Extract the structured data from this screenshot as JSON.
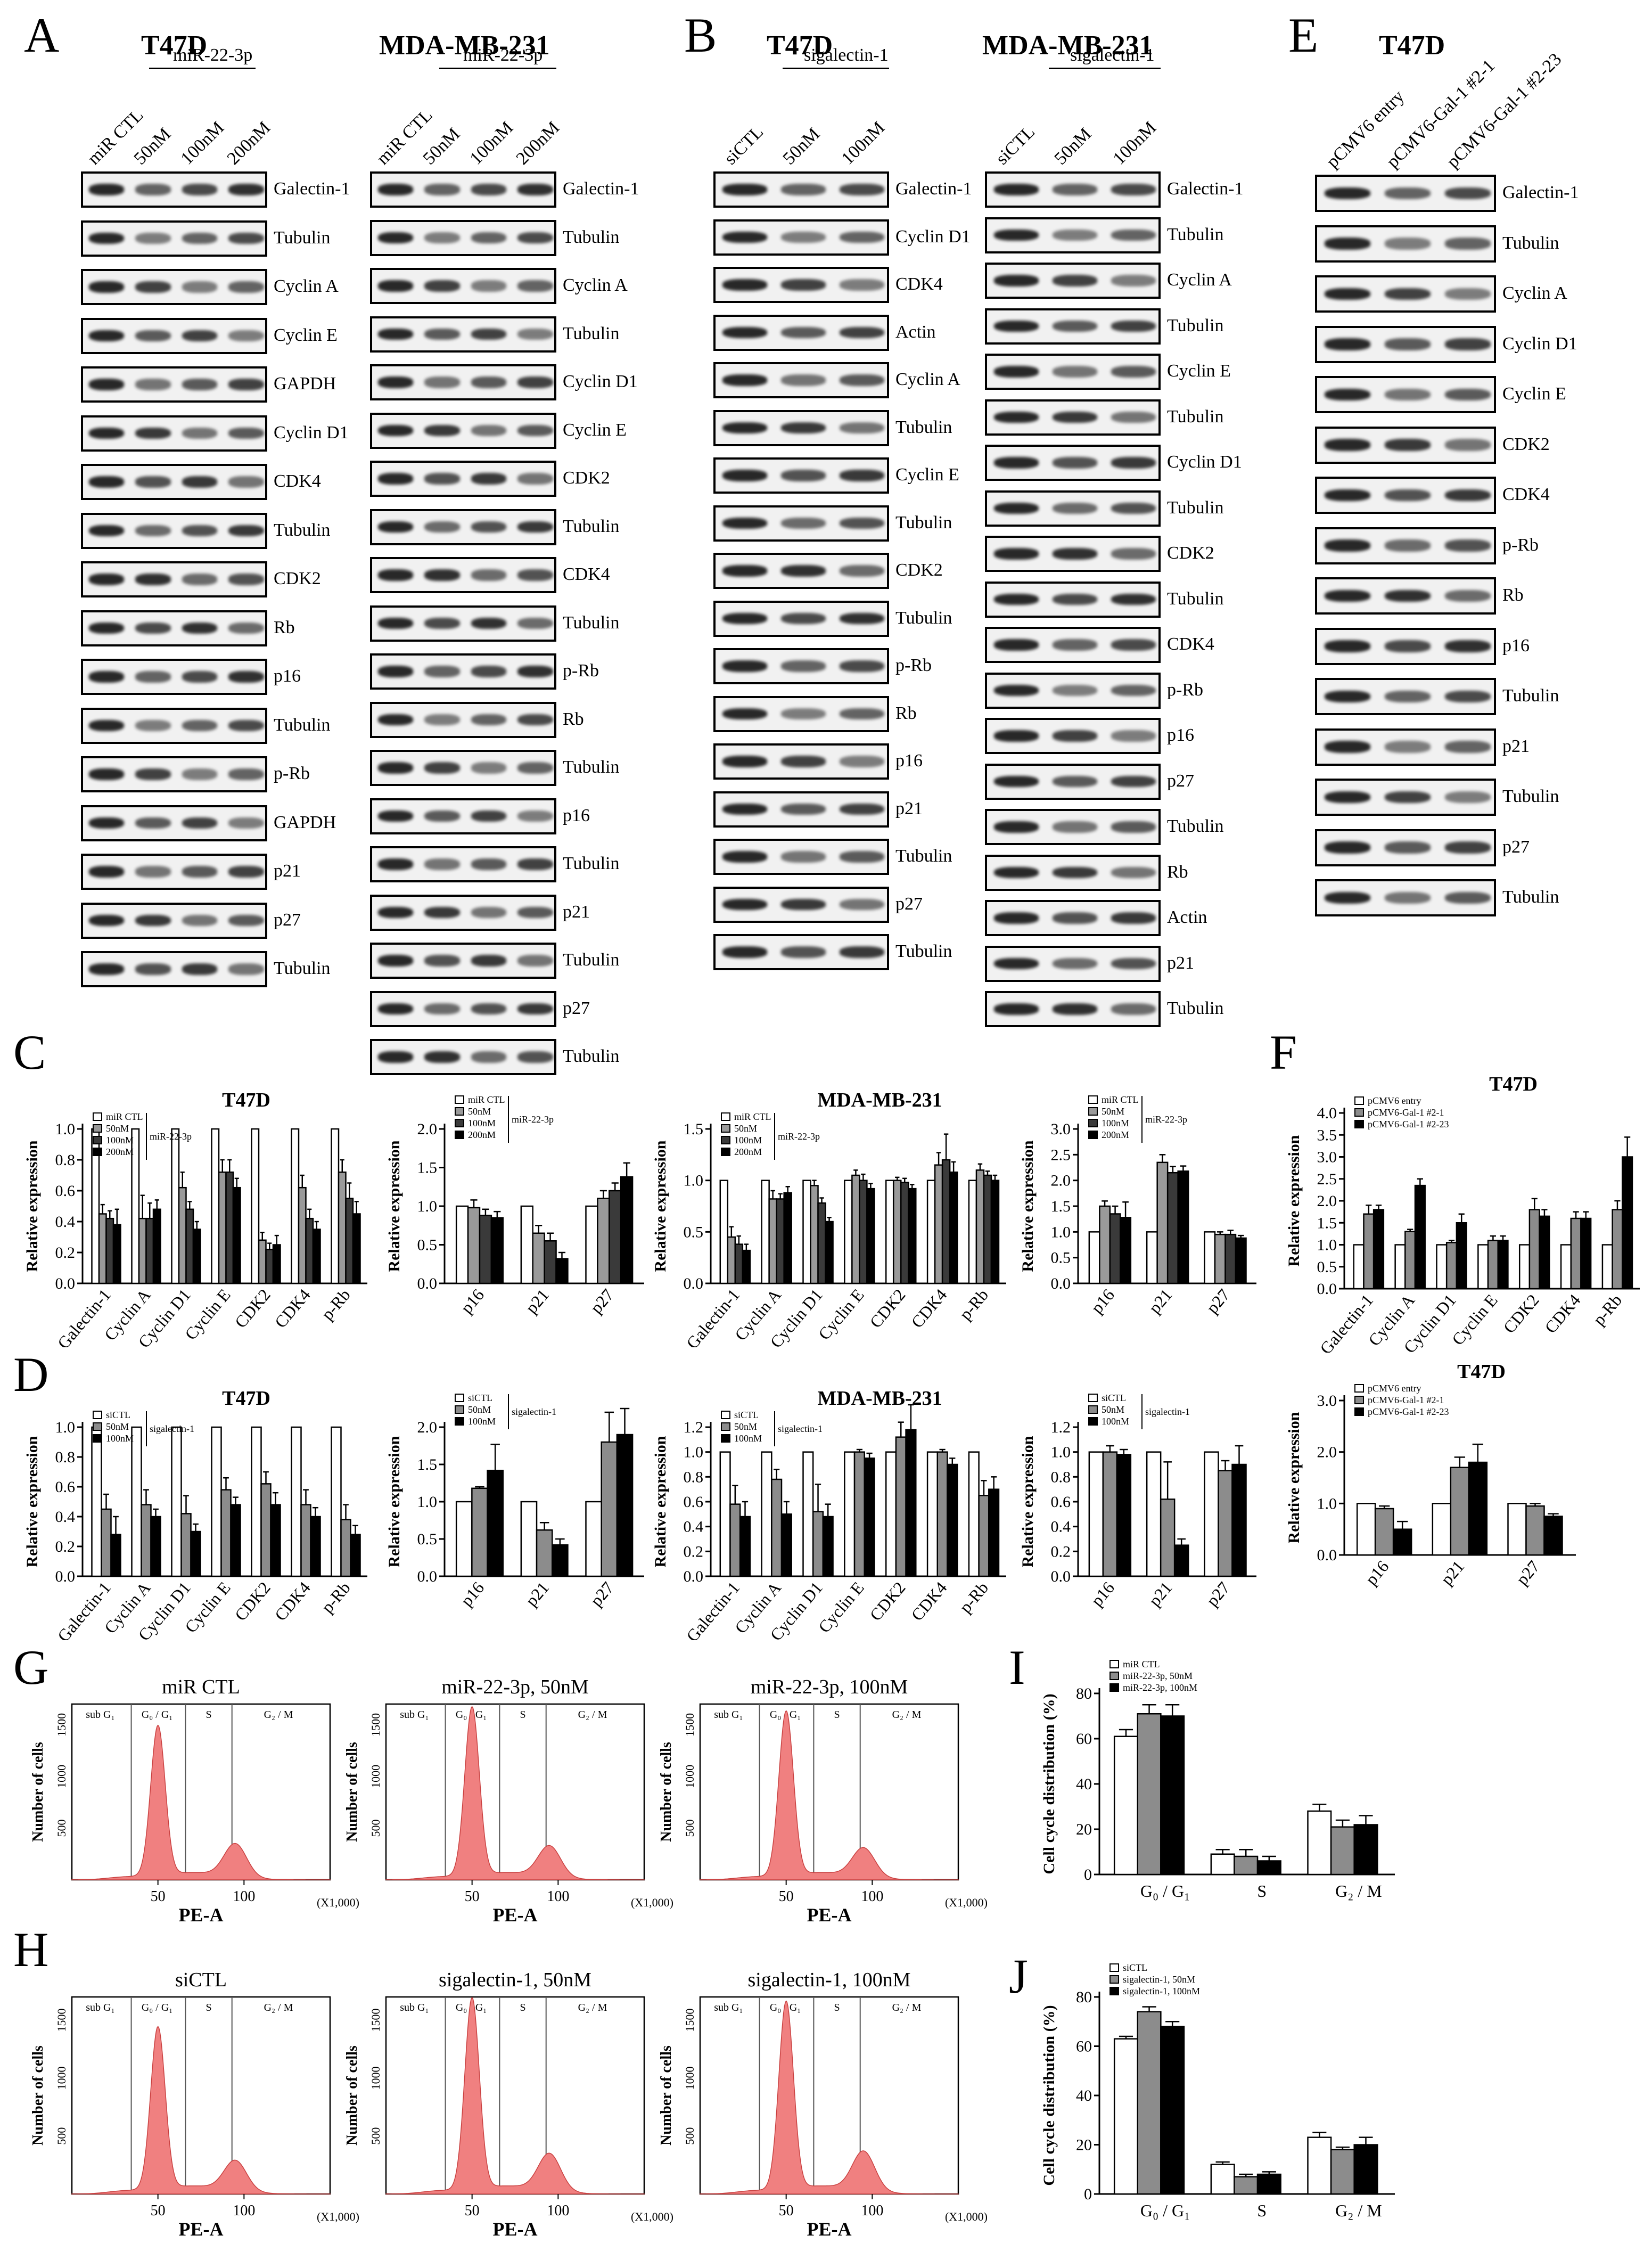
{
  "panel_letters": {
    "A": "A",
    "B": "B",
    "C": "C",
    "D": "D",
    "E": "E",
    "F": "F",
    "G": "G",
    "H": "H",
    "I": "I",
    "J": "J"
  },
  "panelA": {
    "t47d": {
      "title": "T47D",
      "group": "miR-22-3p",
      "lanes": [
        "miR CTL",
        "50nM",
        "100nM",
        "200nM"
      ],
      "rows": [
        "Galectin-1",
        "Tubulin",
        "Cyclin A",
        "Cyclin E",
        "GAPDH",
        "Cyclin D1",
        "CDK4",
        "Tubulin",
        "CDK2",
        "Rb",
        "p16",
        "Tubulin",
        "p-Rb",
        "GAPDH",
        "p21",
        "p27",
        "Tubulin"
      ]
    },
    "mda": {
      "title": "MDA-MB-231",
      "group": "miR-22-3p",
      "lanes": [
        "miR CTL",
        "50nM",
        "100nM",
        "200nM"
      ],
      "rows": [
        "Galectin-1",
        "Tubulin",
        "Cyclin A",
        "Tubulin",
        "Cyclin D1",
        "Cyclin E",
        "CDK2",
        "Tubulin",
        "CDK4",
        "Tubulin",
        "p-Rb",
        "Rb",
        "Tubulin",
        "p16",
        "Tubulin",
        "p21",
        "Tubulin",
        "p27",
        "Tubulin"
      ]
    }
  },
  "panelB": {
    "t47d": {
      "title": "T47D",
      "group": "sigalectin-1",
      "lanes": [
        "siCTL",
        "50nM",
        "100nM"
      ],
      "rows": [
        "Galectin-1",
        "Cyclin D1",
        "CDK4",
        "Actin",
        "Cyclin A",
        "Tubulin",
        "Cyclin E",
        "Tubulin",
        "CDK2",
        "Tubulin",
        "p-Rb",
        "Rb",
        "p16",
        "p21",
        "Tubulin",
        "p27",
        "Tubulin"
      ]
    },
    "mda": {
      "title": "MDA-MB-231",
      "group": "sigalectin-1",
      "lanes": [
        "siCTL",
        "50nM",
        "100nM"
      ],
      "rows": [
        "Galectin-1",
        "Tubulin",
        "Cyclin A",
        "Tubulin",
        "Cyclin E",
        "Tubulin",
        "Cyclin D1",
        "Tubulin",
        "CDK2",
        "Tubulin",
        "CDK4",
        "p-Rb",
        "p16",
        "p27",
        "Tubulin",
        "Rb",
        "Actin",
        "p21",
        "Tubulin"
      ]
    }
  },
  "panelE": {
    "title": "T47D",
    "lanes": [
      "pCMV6 entry",
      "pCMV6-Gal-1 #2-1",
      "pCMV6-Gal-1 #2-23"
    ],
    "rows": [
      "Galectin-1",
      "Tubulin",
      "Cyclin A",
      "Cyclin D1",
      "Cyclin E",
      "CDK2",
      "CDK4",
      "p-Rb",
      "Rb",
      "p16",
      "Tubulin",
      "p21",
      "Tubulin",
      "p27",
      "Tubulin"
    ]
  },
  "flow": {
    "gates": [
      "sub G₁",
      "G₀ / G₁",
      "S",
      "G₂ / M"
    ],
    "ylabel": "Number of cells",
    "xlabel": "PE-A",
    "xunit": "(X1,000)",
    "G": {
      "titles": [
        "miR CTL",
        "miR-22-3p, 50nM",
        "miR-22-3p, 100nM"
      ]
    },
    "H": {
      "titles": [
        "siCTL",
        "sigalectin-1, 50nM",
        "sigalectin-1, 100nM"
      ]
    }
  },
  "chart_data": [
    {
      "id": "C1",
      "type": "bar",
      "title": "T47D",
      "ylabel": "Relative expression",
      "ylim": [
        0,
        1.0
      ],
      "yticks": [
        0,
        0.2,
        0.4,
        0.6,
        0.8,
        1.0
      ],
      "categories": [
        "Galectin-1",
        "Cyclin A",
        "Cyclin D1",
        "Cyclin E",
        "CDK2",
        "CDK4",
        "p-Rb"
      ],
      "legend_group": "miR-22-3p",
      "series": [
        {
          "name": "miR CTL",
          "values": [
            1,
            1,
            1,
            1,
            1,
            1,
            1
          ],
          "err": [
            0,
            0,
            0,
            0,
            0,
            0,
            0
          ]
        },
        {
          "name": "50nM",
          "values": [
            0.45,
            0.42,
            0.62,
            0.72,
            0.28,
            0.62,
            0.72
          ],
          "err": [
            0.06,
            0.15,
            0.1,
            0.08,
            0.05,
            0.08,
            0.08
          ]
        },
        {
          "name": "100nM",
          "values": [
            0.42,
            0.42,
            0.48,
            0.72,
            0.22,
            0.42,
            0.55
          ],
          "err": [
            0.05,
            0.1,
            0.05,
            0.08,
            0.04,
            0.06,
            0.1
          ]
        },
        {
          "name": "200nM",
          "values": [
            0.38,
            0.48,
            0.35,
            0.62,
            0.25,
            0.35,
            0.45
          ],
          "err": [
            0.1,
            0.06,
            0.05,
            0.06,
            0.06,
            0.05,
            0.08
          ]
        }
      ]
    },
    {
      "id": "C2",
      "type": "bar",
      "title": "",
      "ylabel": "Relative expression",
      "ylim": [
        0,
        2.0
      ],
      "yticks": [
        0,
        0.5,
        1.0,
        1.5,
        2.0
      ],
      "categories": [
        "p16",
        "p21",
        "p27"
      ],
      "legend_group": "miR-22-3p",
      "series": [
        {
          "name": "miR CTL",
          "values": [
            1,
            1,
            1
          ],
          "err": [
            0,
            0,
            0
          ]
        },
        {
          "name": "50nM",
          "values": [
            0.98,
            0.65,
            1.1
          ],
          "err": [
            0.1,
            0.1,
            0.1
          ]
        },
        {
          "name": "100nM",
          "values": [
            0.88,
            0.55,
            1.2
          ],
          "err": [
            0.08,
            0.1,
            0.1
          ]
        },
        {
          "name": "200nM",
          "values": [
            0.85,
            0.32,
            1.38
          ],
          "err": [
            0.08,
            0.08,
            0.18
          ]
        }
      ]
    },
    {
      "id": "C3",
      "type": "bar",
      "title": "MDA-MB-231",
      "ylabel": "Relative expression",
      "ylim": [
        0,
        1.5
      ],
      "yticks": [
        0,
        0.5,
        1.0,
        1.5
      ],
      "categories": [
        "Galectin-1",
        "Cyclin A",
        "Cyclin D1",
        "Cyclin E",
        "CDK2",
        "CDK4",
        "p-Rb"
      ],
      "legend_group": "miR-22-3p",
      "series": [
        {
          "name": "miR CTL",
          "values": [
            1,
            1,
            1,
            1,
            1,
            1,
            1
          ],
          "err": [
            0,
            0,
            0,
            0,
            0,
            0,
            0
          ]
        },
        {
          "name": "50nM",
          "values": [
            0.45,
            0.82,
            0.95,
            1.05,
            1.0,
            1.15,
            1.1
          ],
          "err": [
            0.1,
            0.08,
            0.05,
            0.05,
            0.03,
            0.12,
            0.06
          ]
        },
        {
          "name": "100nM",
          "values": [
            0.38,
            0.82,
            0.78,
            1.0,
            0.98,
            1.2,
            1.05
          ],
          "err": [
            0.08,
            0.05,
            0.05,
            0.06,
            0.04,
            0.25,
            0.04
          ]
        },
        {
          "name": "200nM",
          "values": [
            0.32,
            0.88,
            0.6,
            0.92,
            0.92,
            1.08,
            1.0
          ],
          "err": [
            0.06,
            0.06,
            0.04,
            0.05,
            0.04,
            0.1,
            0.05
          ]
        }
      ]
    },
    {
      "id": "C4",
      "type": "bar",
      "title": "",
      "ylabel": "Relative expression",
      "ylim": [
        0,
        3.0
      ],
      "yticks": [
        0,
        0.5,
        1.0,
        1.5,
        2.0,
        2.5,
        3.0
      ],
      "categories": [
        "p16",
        "p21",
        "p27"
      ],
      "legend_group": "miR-22-3p",
      "series": [
        {
          "name": "miR CTL",
          "values": [
            1,
            1,
            1
          ],
          "err": [
            0,
            0,
            0
          ]
        },
        {
          "name": "50nM",
          "values": [
            1.5,
            2.35,
            0.95
          ],
          "err": [
            0.1,
            0.15,
            0.05
          ]
        },
        {
          "name": "100nM",
          "values": [
            1.35,
            2.15,
            0.95
          ],
          "err": [
            0.15,
            0.12,
            0.08
          ]
        },
        {
          "name": "200nM",
          "values": [
            1.28,
            2.18,
            0.88
          ],
          "err": [
            0.3,
            0.1,
            0.05
          ]
        }
      ]
    },
    {
      "id": "D1",
      "type": "bar",
      "title": "T47D",
      "ylabel": "Relative expression",
      "ylim": [
        0,
        1.0
      ],
      "yticks": [
        0,
        0.2,
        0.4,
        0.6,
        0.8,
        1.0
      ],
      "categories": [
        "Galectin-1",
        "Cyclin A",
        "Cyclin D1",
        "Cyclin E",
        "CDK2",
        "CDK4",
        "p-Rb"
      ],
      "legend_group": "sigalectin-1",
      "series": [
        {
          "name": "siCTL",
          "values": [
            1,
            1,
            1,
            1,
            1,
            1,
            1
          ],
          "err": [
            0,
            0,
            0,
            0,
            0,
            0,
            0
          ]
        },
        {
          "name": "50nM",
          "values": [
            0.45,
            0.48,
            0.42,
            0.58,
            0.62,
            0.48,
            0.38
          ],
          "err": [
            0.1,
            0.1,
            0.12,
            0.08,
            0.08,
            0.1,
            0.1
          ]
        },
        {
          "name": "100nM",
          "values": [
            0.28,
            0.4,
            0.3,
            0.48,
            0.48,
            0.4,
            0.28
          ],
          "err": [
            0.12,
            0.05,
            0.05,
            0.05,
            0.08,
            0.06,
            0.06
          ]
        }
      ]
    },
    {
      "id": "D2",
      "type": "bar",
      "title": "",
      "ylabel": "Relative expression",
      "ylim": [
        0,
        2.0
      ],
      "yticks": [
        0,
        0.5,
        1.0,
        1.5,
        2.0
      ],
      "categories": [
        "p16",
        "p21",
        "p27"
      ],
      "legend_group": "sigalectin-1",
      "series": [
        {
          "name": "siCTL",
          "values": [
            1,
            1,
            1
          ],
          "err": [
            0,
            0,
            0
          ]
        },
        {
          "name": "50nM",
          "values": [
            1.18,
            0.62,
            1.8
          ],
          "err": [
            0.02,
            0.1,
            0.4
          ]
        },
        {
          "name": "100nM",
          "values": [
            1.42,
            0.42,
            1.9
          ],
          "err": [
            0.35,
            0.08,
            0.35
          ]
        }
      ]
    },
    {
      "id": "D3",
      "type": "bar",
      "title": "MDA-MB-231",
      "ylabel": "Relative expression",
      "ylim": [
        0,
        1.2
      ],
      "yticks": [
        0,
        0.2,
        0.4,
        0.6,
        0.8,
        1.0,
        1.2
      ],
      "categories": [
        "Galectin-1",
        "Cyclin A",
        "Cyclin D1",
        "Cyclin E",
        "CDK2",
        "CDK4",
        "p-Rb"
      ],
      "legend_group": "sigalectin-1",
      "series": [
        {
          "name": "siCTL",
          "values": [
            1,
            1,
            1,
            1,
            1,
            1,
            1
          ],
          "err": [
            0,
            0,
            0,
            0,
            0,
            0,
            0
          ]
        },
        {
          "name": "50nM",
          "values": [
            0.58,
            0.78,
            0.52,
            1.0,
            1.12,
            1.0,
            0.65
          ],
          "err": [
            0.15,
            0.08,
            0.22,
            0.02,
            0.12,
            0.02,
            0.12
          ]
        },
        {
          "name": "100nM",
          "values": [
            0.48,
            0.5,
            0.48,
            0.95,
            1.18,
            0.9,
            0.7
          ],
          "err": [
            0.12,
            0.1,
            0.1,
            0.04,
            0.2,
            0.05,
            0.1
          ]
        }
      ]
    },
    {
      "id": "D4",
      "type": "bar",
      "title": "",
      "ylabel": "Relative expression",
      "ylim": [
        0,
        1.2
      ],
      "yticks": [
        0,
        0.2,
        0.4,
        0.6,
        0.8,
        1.0,
        1.2
      ],
      "categories": [
        "p16",
        "p21",
        "p27"
      ],
      "legend_group": "sigalectin-1",
      "series": [
        {
          "name": "siCTL",
          "values": [
            1,
            1,
            1
          ],
          "err": [
            0,
            0,
            0
          ]
        },
        {
          "name": "50nM",
          "values": [
            1.0,
            0.62,
            0.85
          ],
          "err": [
            0.05,
            0.3,
            0.08
          ]
        },
        {
          "name": "100nM",
          "values": [
            0.98,
            0.25,
            0.9
          ],
          "err": [
            0.04,
            0.05,
            0.15
          ]
        }
      ]
    },
    {
      "id": "F1",
      "type": "bar",
      "title": "T47D",
      "ylabel": "Relative expression",
      "ylim": [
        0,
        4.0
      ],
      "yticks": [
        0,
        0.5,
        1.0,
        1.5,
        2.0,
        2.5,
        3.0,
        3.5,
        4.0
      ],
      "categories": [
        "Galectin-1",
        "Cyclin A",
        "Cyclin D1",
        "Cyclin E",
        "CDK2",
        "CDK4",
        "p-Rb"
      ],
      "series": [
        {
          "name": "pCMV6 entry",
          "values": [
            1,
            1,
            1,
            1,
            1,
            1,
            1
          ],
          "err": [
            0,
            0,
            0,
            0,
            0,
            0,
            0
          ]
        },
        {
          "name": "pCMV6-Gal-1 #2-1",
          "values": [
            1.7,
            1.3,
            1.05,
            1.1,
            1.8,
            1.6,
            1.8
          ],
          "err": [
            0.2,
            0.05,
            0.05,
            0.1,
            0.25,
            0.15,
            0.2
          ]
        },
        {
          "name": "pCMV6-Gal-1 #2-23",
          "values": [
            1.8,
            2.35,
            1.5,
            1.1,
            1.65,
            1.6,
            3.0
          ],
          "err": [
            0.1,
            0.15,
            0.2,
            0.1,
            0.15,
            0.15,
            0.45
          ]
        }
      ]
    },
    {
      "id": "F2",
      "type": "bar",
      "title": "T47D",
      "ylabel": "Relative expression",
      "ylim": [
        0,
        3.0
      ],
      "yticks": [
        0,
        1.0,
        2.0,
        3.0
      ],
      "categories": [
        "p16",
        "p21",
        "p27"
      ],
      "series": [
        {
          "name": "pCMV6 entry",
          "values": [
            1,
            1,
            1
          ],
          "err": [
            0,
            0,
            0
          ]
        },
        {
          "name": "pCMV6-Gal-1 #2-1",
          "values": [
            0.9,
            1.7,
            0.95
          ],
          "err": [
            0.05,
            0.2,
            0.05
          ]
        },
        {
          "name": "pCMV6-Gal-1 #2-23",
          "values": [
            0.5,
            1.8,
            0.75
          ],
          "err": [
            0.15,
            0.35,
            0.05
          ]
        }
      ]
    },
    {
      "id": "I",
      "type": "bar",
      "title": "",
      "ylabel": "Cell cycle distribution (%)",
      "ylim": [
        0,
        80
      ],
      "yticks": [
        0,
        20,
        40,
        60,
        80
      ],
      "categories": [
        "G₀ / G₁",
        "S",
        "G₂ / M"
      ],
      "series": [
        {
          "name": "miR CTL",
          "values": [
            61,
            9,
            28
          ],
          "err": [
            3,
            2,
            3
          ]
        },
        {
          "name": "miR-22-3p, 50nM",
          "values": [
            71,
            8,
            21
          ],
          "err": [
            4,
            3,
            3
          ]
        },
        {
          "name": "miR-22-3p, 100nM",
          "values": [
            70,
            6,
            22
          ],
          "err": [
            5,
            2,
            4
          ]
        }
      ]
    },
    {
      "id": "J",
      "type": "bar",
      "title": "",
      "ylabel": "Cell cycle distribution (%)",
      "ylim": [
        0,
        80
      ],
      "yticks": [
        0,
        20,
        40,
        60,
        80
      ],
      "categories": [
        "G₀ / G₁",
        "S",
        "G₂ / M"
      ],
      "series": [
        {
          "name": "siCTL",
          "values": [
            63,
            12,
            23
          ],
          "err": [
            1,
            1,
            2
          ]
        },
        {
          "name": "sigalectin-1, 50nM",
          "values": [
            74,
            7,
            18
          ],
          "err": [
            2,
            1,
            1
          ]
        },
        {
          "name": "sigalectin-1, 100nM",
          "values": [
            68,
            8,
            20
          ],
          "err": [
            2,
            1,
            3
          ]
        }
      ]
    }
  ]
}
